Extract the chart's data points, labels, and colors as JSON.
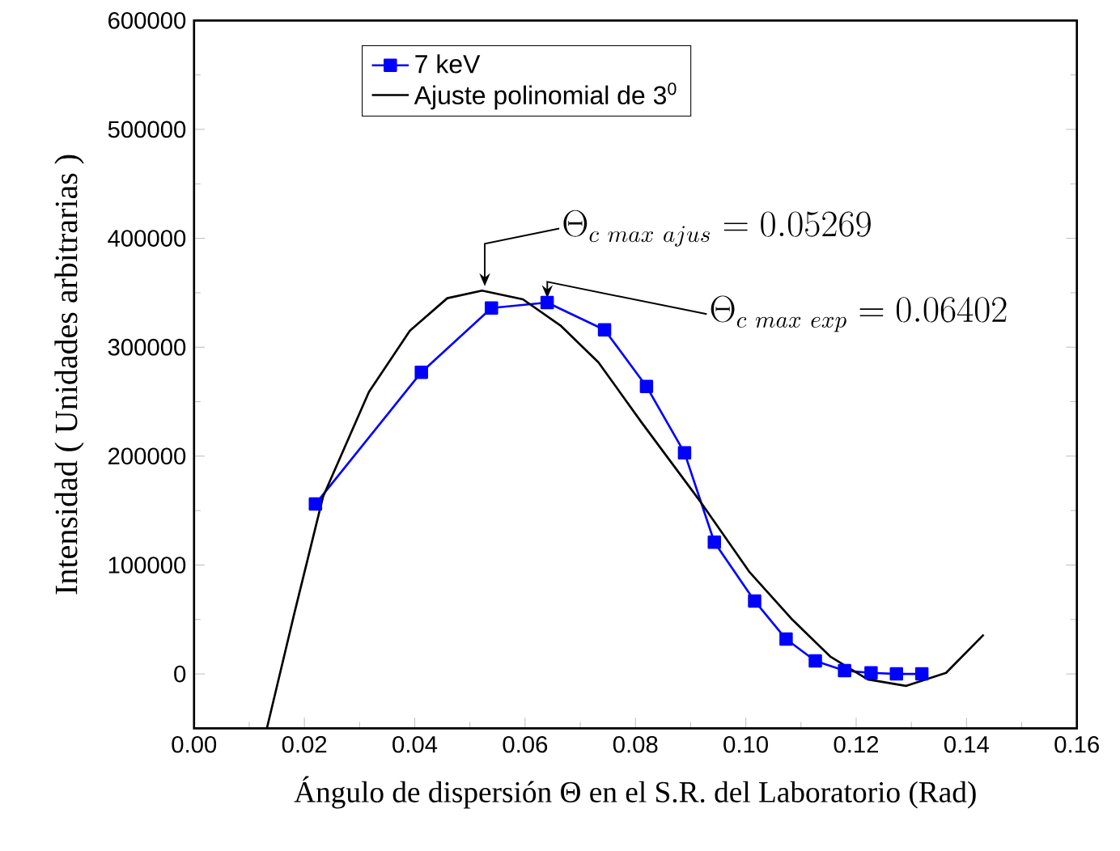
{
  "chart_data": {
    "type": "line",
    "xlabel": "Ángulo de dispersión Θ en el S.R. del Laboratorio (Rad)",
    "ylabel": "Intensidad ( Unidades arbitrarias )",
    "xlim": [
      0,
      0.16
    ],
    "ylim": [
      -50000,
      600000
    ],
    "xticks": [
      {
        "value": 0,
        "label": "0.00"
      },
      {
        "value": 0.02,
        "label": "0.02"
      },
      {
        "value": 0.04,
        "label": "0.04"
      },
      {
        "value": 0.06,
        "label": "0.06"
      },
      {
        "value": 0.08,
        "label": "0.08"
      },
      {
        "value": 0.1,
        "label": "0.10"
      },
      {
        "value": 0.12,
        "label": "0.12"
      },
      {
        "value": 0.14,
        "label": "0.14"
      },
      {
        "value": 0.16,
        "label": "0.16"
      }
    ],
    "yticks": [
      0,
      100000,
      200000,
      300000,
      400000,
      500000,
      600000
    ],
    "legend": "top left",
    "grid": false,
    "series": [
      {
        "name": "7 keV",
        "color": "#0000ff",
        "marker": "square",
        "line_style": "solid",
        "x": [
          0.022,
          0.0412,
          0.0539,
          0.064,
          0.0744,
          0.082,
          0.0889,
          0.0943,
          0.1016,
          0.1073,
          0.1126,
          0.1179,
          0.1227,
          0.1273,
          0.1319
        ],
        "values": [
          156000,
          277000,
          336000,
          341000,
          316000,
          264000,
          203000,
          121000,
          67000,
          32000,
          12000,
          3000,
          1000,
          0,
          0
        ]
      },
      {
        "name": "Ajuste polinomial de 3$^{0}$",
        "color": "#000000",
        "marker": "none",
        "line_style": "solid",
        "x": [
          0.0132,
          0.0181,
          0.0234,
          0.0317,
          0.0391,
          0.0459,
          0.0522,
          0.0596,
          0.0664,
          0.0733,
          0.0811,
          0.0918,
          0.1006,
          0.1084,
          0.1153,
          0.1221,
          0.129,
          0.1363,
          0.1431
        ],
        "values": [
          -50000,
          54000,
          163000,
          259000,
          315000,
          345000,
          352000,
          344000,
          320000,
          286000,
          231000,
          158000,
          94000,
          50000,
          16000,
          -5000,
          -11000,
          1000,
          36000
        ]
      }
    ],
    "annotations": [
      {
        "text": "\\Theta_{c\\ max\\ ajus} = 0.05269",
        "x": 0.05269,
        "y": 352000
      },
      {
        "text": "\\Theta_{c\\ max\\ exp} = 0.06402",
        "x": 0.06402,
        "y": 341000
      }
    ]
  }
}
